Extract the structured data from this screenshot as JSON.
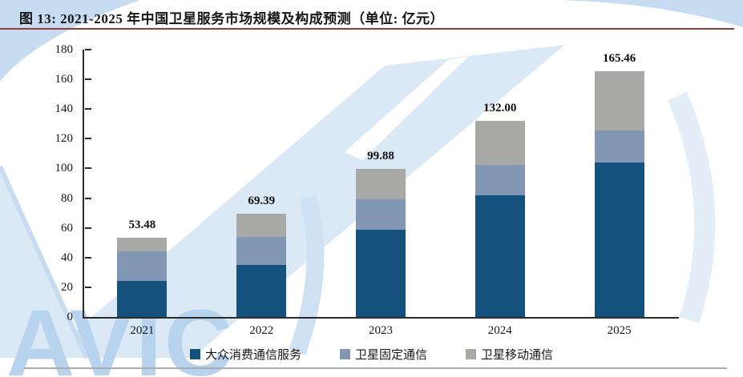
{
  "header": {
    "title": "图 13: 2021-2025 年中国卫星服务市场规模及构成预测（单位: 亿元）",
    "rule_color": "#8e3d3a"
  },
  "watermark": {
    "text": "AVIC",
    "text_color": "#b7d3ee",
    "shape_color_light": "#dbe8f6",
    "shape_color_mid": "#c7dcf0"
  },
  "chart_data": {
    "type": "bar",
    "stacked": true,
    "title": "2021-2025 年中国卫星服务市场规模及构成预测",
    "unit": "亿元",
    "categories": [
      "2021",
      "2022",
      "2023",
      "2024",
      "2025"
    ],
    "series": [
      {
        "name": "大众消费通信服务",
        "color": "#14527d",
        "values": [
          24.0,
          35.0,
          59.0,
          82.0,
          104.0
        ]
      },
      {
        "name": "卫星固定通信",
        "color": "#8297b4",
        "values": [
          20.0,
          19.0,
          20.0,
          20.5,
          21.5
        ]
      },
      {
        "name": "卫星移动通信",
        "color": "#a8a8a6",
        "values": [
          9.48,
          15.39,
          20.88,
          29.5,
          39.96
        ]
      }
    ],
    "totals": [
      53.48,
      69.39,
      99.88,
      132.0,
      165.46
    ],
    "total_labels": [
      "53.48",
      "69.39",
      "99.88",
      "132.00",
      "165.46"
    ],
    "ylim": [
      0,
      180
    ],
    "yticks": [
      0,
      20,
      40,
      60,
      80,
      100,
      120,
      140,
      160,
      180
    ],
    "grid": false,
    "legend_position": "bottom"
  }
}
